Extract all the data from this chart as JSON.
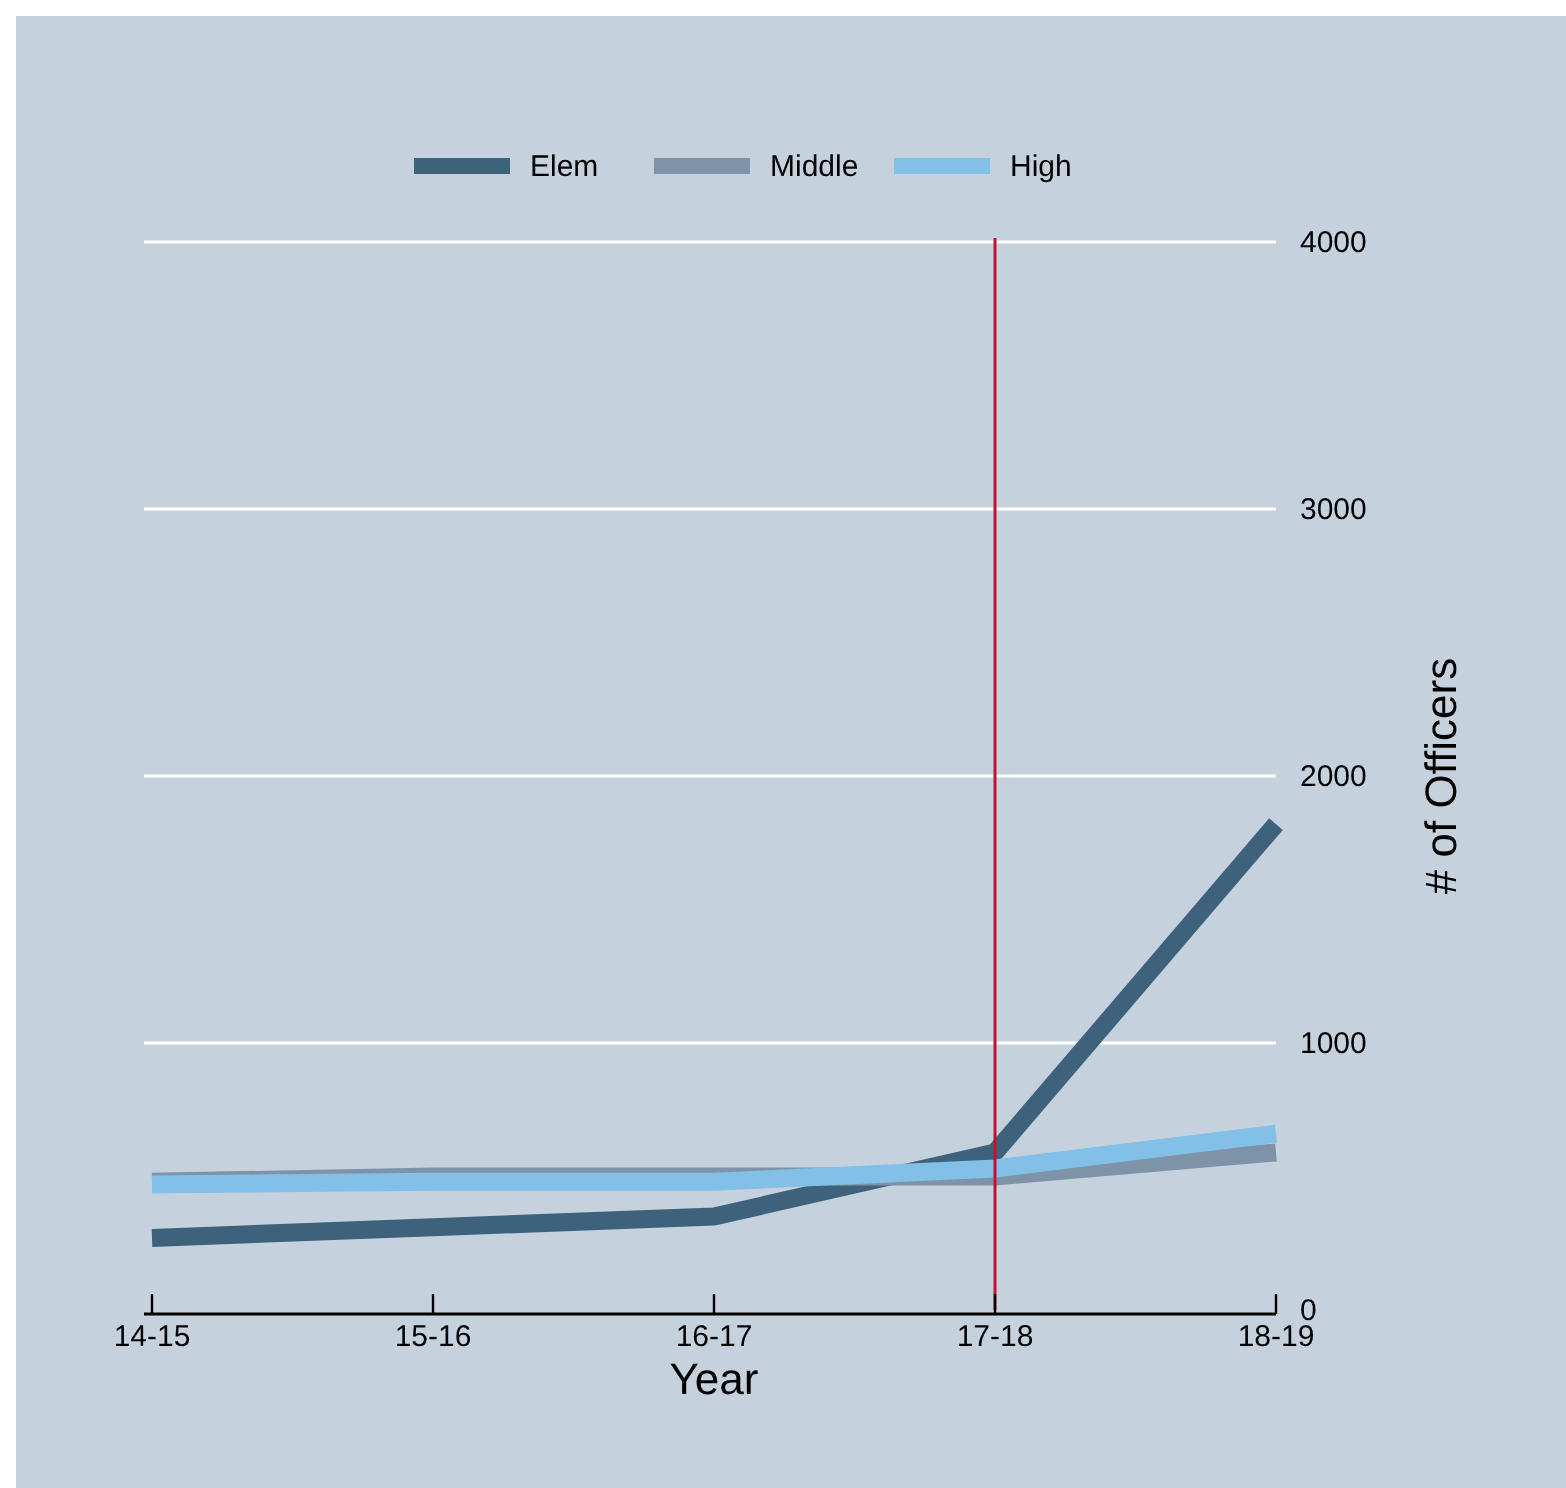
{
  "chart_data": {
    "type": "line",
    "xlabel": "Year",
    "ylabel": "# of Officers",
    "categories": [
      "14-15",
      "15-16",
      "16-17",
      "17-18",
      "18-19"
    ],
    "series": [
      {
        "name": "Elem",
        "color": "#3f627c",
        "values": [
          270,
          310,
          350,
          590,
          1820
        ]
      },
      {
        "name": "Middle",
        "color": "#7f93a8",
        "values": [
          480,
          500,
          500,
          500,
          590
        ]
      },
      {
        "name": "High",
        "color": "#82c0e8",
        "values": [
          470,
          480,
          480,
          530,
          660
        ]
      }
    ],
    "ylim": [
      0,
      4000
    ],
    "yticks": [
      0,
      1000,
      2000,
      3000,
      4000
    ],
    "grid": "y",
    "legend": "top",
    "ref_lines": [
      {
        "axis": "x",
        "value": "17-18",
        "color": "#c8102e"
      }
    ]
  }
}
